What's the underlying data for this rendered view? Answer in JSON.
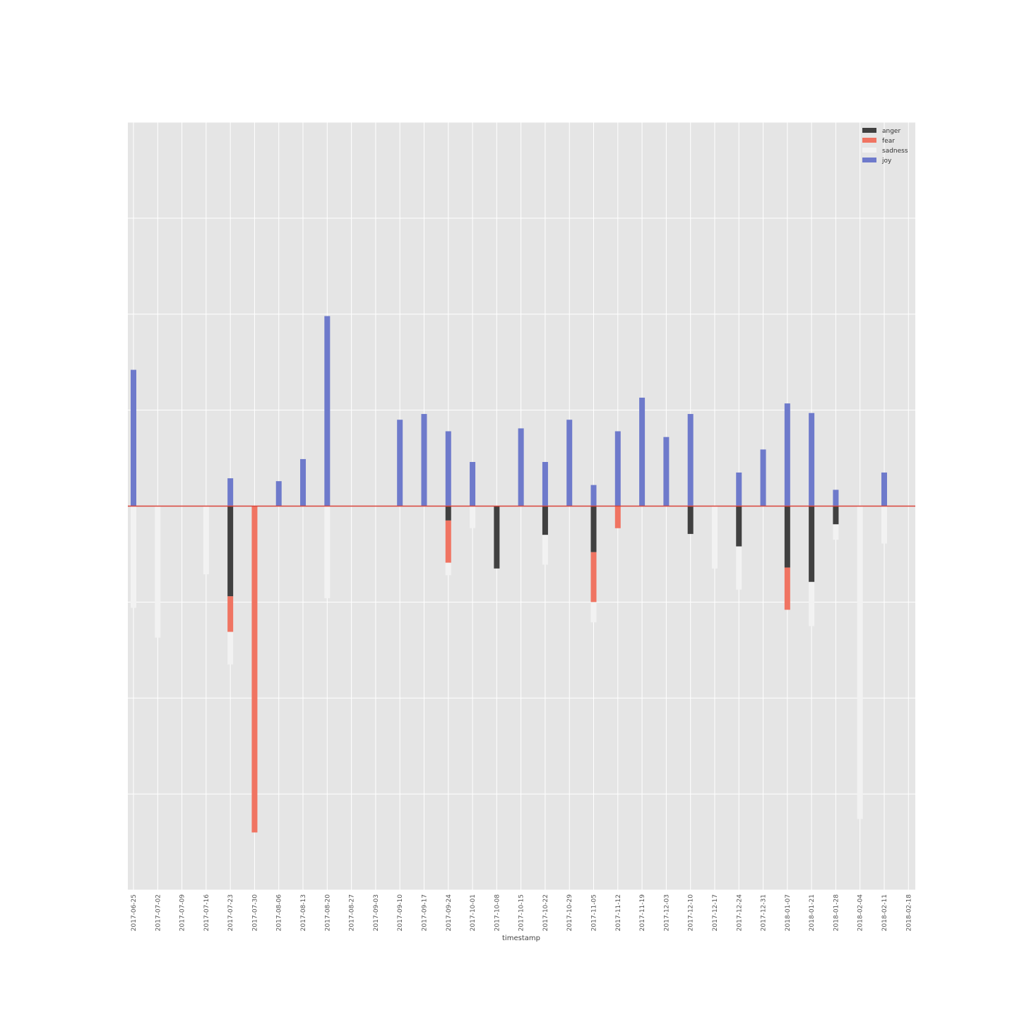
{
  "chart_data": {
    "type": "bar",
    "stacked": true,
    "title": "",
    "xlabel": "timestamp",
    "ylabel": "",
    "grid": true,
    "legend_position": "top-right",
    "colors": {
      "anger": "#404040",
      "fear": "#f07462",
      "sadness": "#f2f2f2",
      "joy": "#6e7acb",
      "zero_line": "#d9453b",
      "plot_background": "#e5e5e5",
      "grid": "#ffffff"
    },
    "categories": [
      "2017-06-25",
      "2017-07-02",
      "2017-07-09",
      "2017-07-16",
      "2017-07-23",
      "2017-07-30",
      "2017-08-06",
      "2017-08-13",
      "2017-08-20",
      "2017-08-27",
      "2017-09-03",
      "2017-09-10",
      "2017-09-17",
      "2017-09-24",
      "2017-10-01",
      "2017-10-08",
      "2017-10-15",
      "2017-10-22",
      "2017-10-29",
      "2017-11-05",
      "2017-11-12",
      "2017-11-19",
      "2017-12-03",
      "2017-12-10",
      "2017-12-17",
      "2017-12-24",
      "2017-12-31",
      "2018-01-07",
      "2018-01-21",
      "2018-01-28",
      "2018-02-04",
      "2018-02-11",
      "2018-02-18"
    ],
    "negative_series": [
      {
        "name": "anger",
        "values": [
          0,
          0,
          0,
          0,
          0.94,
          0,
          0,
          0,
          0,
          0,
          0,
          0,
          0,
          0.15,
          0,
          0.65,
          0,
          0.3,
          0,
          0.48,
          0,
          0,
          0,
          0.29,
          0,
          0.42,
          0,
          0.64,
          0.79,
          0.19,
          0,
          0,
          0
        ]
      },
      {
        "name": "fear",
        "values": [
          0,
          0,
          0,
          0,
          0.37,
          3.4,
          0,
          0,
          0,
          0,
          0,
          0,
          0,
          0.44,
          0,
          0,
          0,
          0,
          0,
          0.52,
          0.23,
          0,
          0,
          0,
          0,
          0,
          0,
          0.44,
          0,
          0,
          0,
          0,
          0
        ]
      },
      {
        "name": "sadness",
        "values": [
          1.06,
          1.37,
          0,
          0.71,
          0.34,
          0,
          0,
          0,
          0.96,
          0,
          0,
          0,
          0,
          0.13,
          0.23,
          0,
          0,
          0.31,
          0,
          0.21,
          0,
          0,
          0,
          0,
          0.65,
          0.45,
          0,
          0,
          0.46,
          0.16,
          3.26,
          0.39,
          0
        ]
      }
    ],
    "positive_series": [
      {
        "name": "joy",
        "values": [
          1.42,
          0,
          0,
          0,
          0.29,
          0,
          0.26,
          0.49,
          1.98,
          0,
          0,
          0.9,
          0.96,
          0.78,
          0.46,
          0,
          0.81,
          0.46,
          0.9,
          0.22,
          0.78,
          1.13,
          0.72,
          0.96,
          0,
          0.35,
          0.59,
          1.07,
          0.97,
          0.17,
          0,
          0.35,
          0
        ]
      }
    ],
    "ylim": [
      -4,
      4
    ]
  }
}
